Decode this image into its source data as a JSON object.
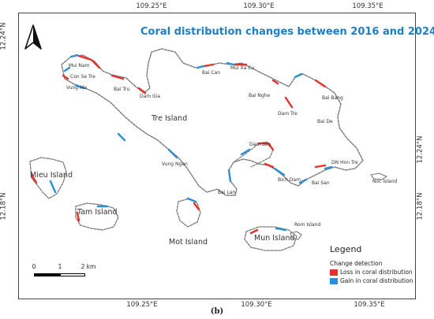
{
  "title": "Coral distribution changes between 2016 and 2024",
  "caption": "(b)",
  "axes": {
    "top_ticks": [
      "109.25°E",
      "109.30°E",
      "109.35°E"
    ],
    "bottom_ticks": [
      "109.25°E",
      "109.30°E",
      "109.35°E"
    ],
    "left_ticks": [
      "12.24°N",
      "12.18°N"
    ],
    "right_ticks": [
      "12.24°N",
      "12.18°N"
    ]
  },
  "islands": {
    "tre": "Tre Island",
    "mieu": "Mieu Island",
    "tam": "Tam Island",
    "mot": "Mot Island",
    "mun": "Mun Island"
  },
  "places": {
    "mui_nam": "Mui Nam",
    "con_se_tre": "Con Se Tre",
    "vung_me": "Vung Me",
    "bai_tru": "Bai Tru",
    "dam_gia": "Dam Gia",
    "bai_can": "Bai Can",
    "mui_xa_cu": "Mui Xa Cu",
    "bai_nghe": "Bai Nghe",
    "dam_tre": "Dam Tre",
    "bai_bang": "Bai Bang",
    "bai_de": "Bai De",
    "dam_bay": "Dam Bay",
    "vung_ngan": "Vung Ngan",
    "bich_dam": "Bich Dam",
    "bai_san": "Bai San",
    "dn_hon_tre": "DN Hon Tre",
    "noc_island": "Noc Island",
    "bai_lan": "Bai Lan",
    "rom_island": "Rom Island"
  },
  "legend": {
    "title": "Legend",
    "subtitle": "Change detection",
    "loss_label": "Loss in coral distribution",
    "gain_label": "Gain in coral distribution",
    "loss_color": "#e8302a",
    "gain_color": "#2a8fd6"
  },
  "scale": {
    "labels": [
      "0",
      "1",
      "2 km"
    ]
  },
  "north_arrow": "north-arrow-icon"
}
